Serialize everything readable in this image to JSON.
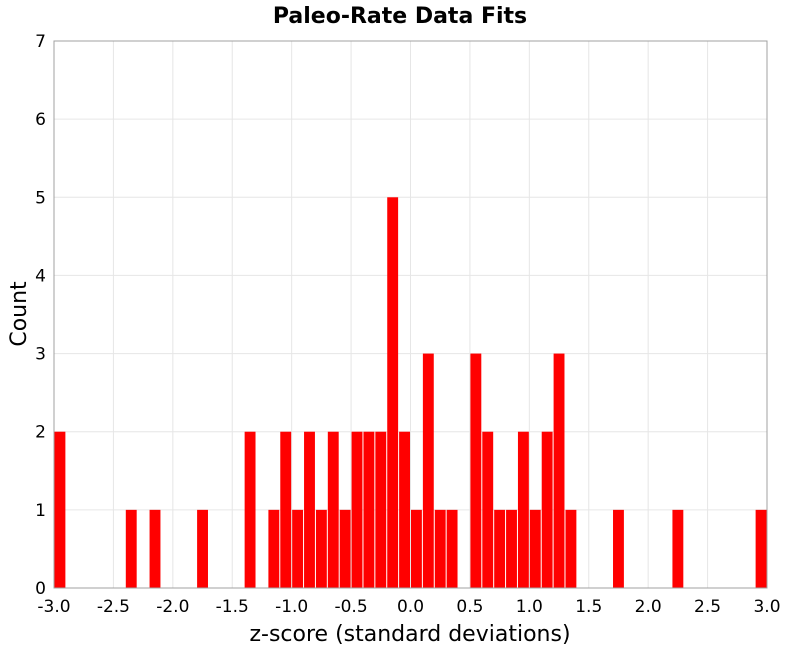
{
  "chart_data": {
    "type": "bar",
    "title": "Paleo-Rate Data Fits",
    "xlabel": "z-score (standard deviations)",
    "ylabel": "Count",
    "xlim": [
      -3.0,
      3.0
    ],
    "ylim": [
      0,
      7
    ],
    "xticks": [
      "-3.0",
      "-2.5",
      "-2.0",
      "-1.5",
      "-1.0",
      "-0.5",
      "0.0",
      "0.5",
      "1.0",
      "1.5",
      "2.0",
      "2.5",
      "3.0"
    ],
    "yticks": [
      "0",
      "1",
      "2",
      "3",
      "4",
      "5",
      "6",
      "7"
    ],
    "grid": true,
    "bin_width": 0.1,
    "bar_color": "#ff0000",
    "bins": [
      {
        "x": -3.0,
        "count": 2
      },
      {
        "x": -2.4,
        "count": 1
      },
      {
        "x": -2.2,
        "count": 1
      },
      {
        "x": -1.8,
        "count": 1
      },
      {
        "x": -1.4,
        "count": 2
      },
      {
        "x": -1.2,
        "count": 1
      },
      {
        "x": -1.1,
        "count": 2
      },
      {
        "x": -1.0,
        "count": 1
      },
      {
        "x": -0.9,
        "count": 2
      },
      {
        "x": -0.8,
        "count": 1
      },
      {
        "x": -0.7,
        "count": 2
      },
      {
        "x": -0.6,
        "count": 1
      },
      {
        "x": -0.5,
        "count": 2
      },
      {
        "x": -0.4,
        "count": 2
      },
      {
        "x": -0.3,
        "count": 2
      },
      {
        "x": -0.2,
        "count": 5
      },
      {
        "x": -0.1,
        "count": 2
      },
      {
        "x": 0.0,
        "count": 1
      },
      {
        "x": 0.1,
        "count": 3
      },
      {
        "x": 0.2,
        "count": 1
      },
      {
        "x": 0.3,
        "count": 1
      },
      {
        "x": 0.5,
        "count": 3
      },
      {
        "x": 0.6,
        "count": 2
      },
      {
        "x": 0.7,
        "count": 1
      },
      {
        "x": 0.8,
        "count": 1
      },
      {
        "x": 0.9,
        "count": 2
      },
      {
        "x": 1.0,
        "count": 1
      },
      {
        "x": 1.1,
        "count": 2
      },
      {
        "x": 1.2,
        "count": 3
      },
      {
        "x": 1.3,
        "count": 1
      },
      {
        "x": 1.7,
        "count": 1
      },
      {
        "x": 2.2,
        "count": 1
      },
      {
        "x": 2.9,
        "count": 1
      }
    ]
  }
}
